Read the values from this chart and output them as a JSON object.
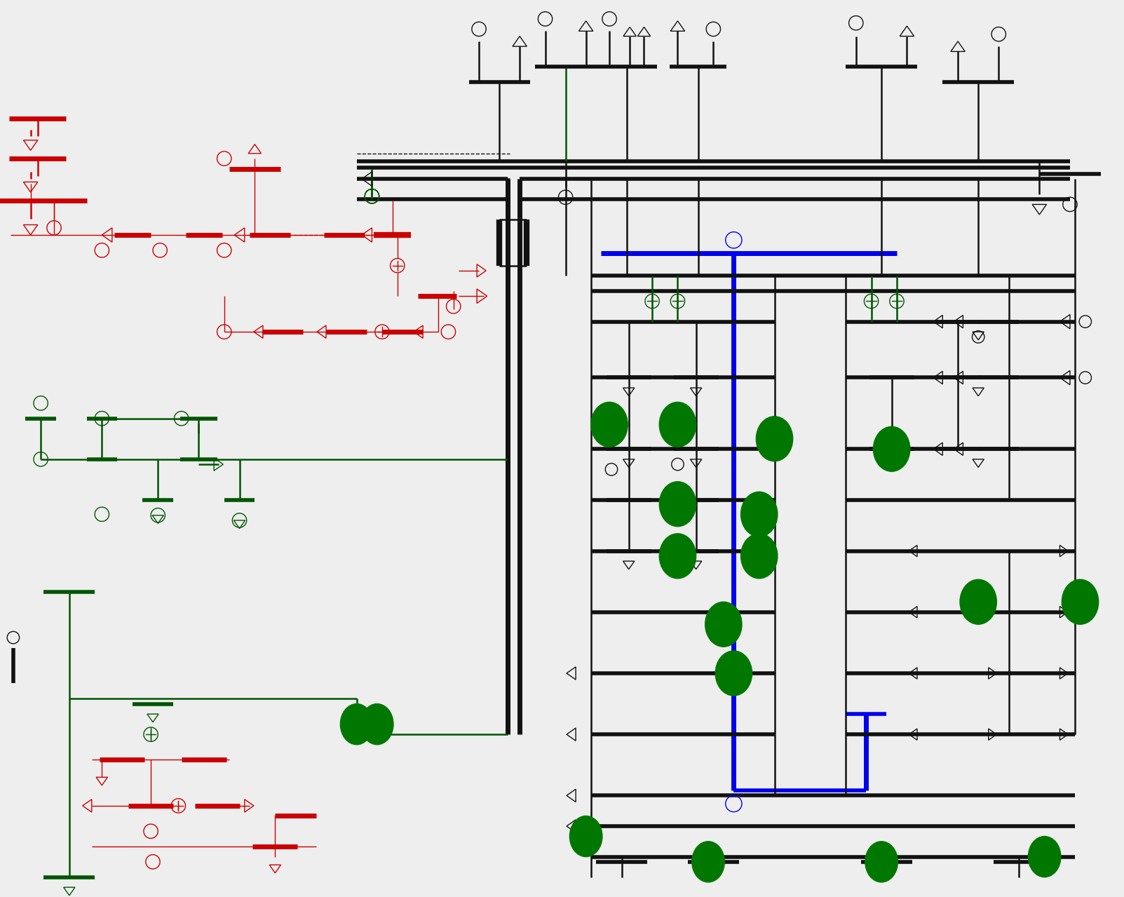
{
  "bg_color": "#eeeeee",
  "blue_color": "#0000EE",
  "green_color": "#005500",
  "red_color": "#CC0000",
  "black_color": "#111111",
  "avail_color": "#007700",
  "light_red_color": "#FF9999",
  "fig_width": 16.03,
  "fig_height": 12.79,
  "dpi": 100
}
